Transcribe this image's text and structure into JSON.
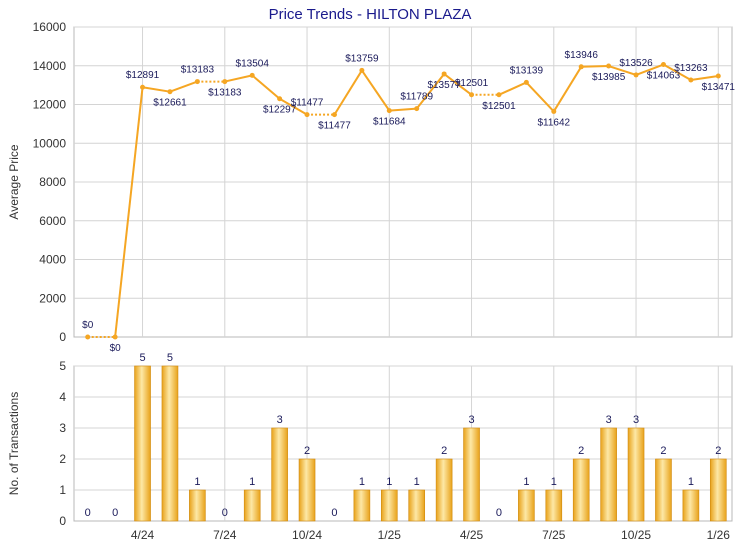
{
  "chart_data": [
    {
      "type": "line",
      "title": "Price Trends - HILTON PLAZA",
      "xlabel": "",
      "ylabel": "Average Price",
      "ylim": [
        0,
        16000
      ],
      "y_ticks": [
        "0",
        "2000",
        "4000",
        "6000",
        "8000",
        "10000",
        "12000",
        "14000",
        "16000"
      ],
      "x_tick_labels": [
        "4/24",
        "7/24",
        "10/24",
        "1/25",
        "4/25",
        "7/25",
        "10/25",
        "1/26"
      ],
      "grid": true,
      "series": [
        {
          "values": [
            0,
            0,
            12891,
            12661,
            13183,
            13183,
            13504,
            12297,
            11477,
            11477,
            13759,
            11684,
            11789,
            13577,
            12501,
            12501,
            13139,
            11642,
            13946,
            13985,
            13526,
            14063,
            13263,
            13471
          ],
          "labels": [
            "$0",
            "$0",
            "$12891",
            "$12661",
            "$13183",
            "$13183",
            "$13504",
            "$12297",
            "$11477",
            "$11477",
            "$13759",
            "$11684",
            "$11789",
            "$13577",
            "$12501",
            "$12501",
            "$13139",
            "$11642",
            "$13946",
            "$13985",
            "$13526",
            "$14063",
            "$13263",
            "$13471"
          ],
          "interpolated": [
            false,
            true,
            false,
            false,
            false,
            true,
            false,
            false,
            false,
            true,
            false,
            false,
            false,
            false,
            false,
            true,
            false,
            false,
            false,
            false,
            false,
            false,
            false,
            false
          ],
          "color": "#f5a623"
        }
      ]
    },
    {
      "type": "bar",
      "xlabel": "",
      "ylabel": "No. of Transactions",
      "ylim": [
        0,
        5
      ],
      "y_ticks": [
        "0",
        "1",
        "2",
        "3",
        "4",
        "5"
      ],
      "x_tick_labels": [
        "4/24",
        "7/24",
        "10/24",
        "1/25",
        "4/25",
        "7/25",
        "10/25",
        "1/26"
      ],
      "values": [
        0,
        0,
        5,
        5,
        1,
        0,
        1,
        3,
        2,
        0,
        1,
        1,
        1,
        2,
        3,
        0,
        1,
        1,
        2,
        3,
        3,
        2,
        1,
        2
      ],
      "grid": true,
      "color": "#f5a623"
    }
  ]
}
